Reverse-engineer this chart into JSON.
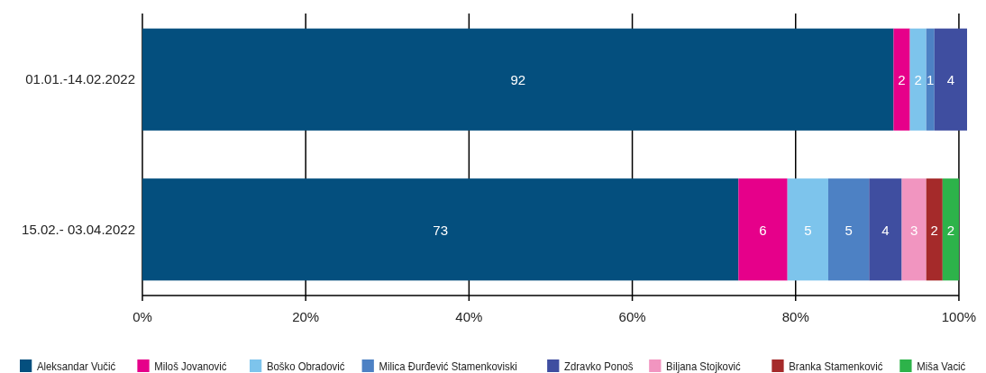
{
  "chart_data": {
    "type": "bar",
    "orientation": "horizontal",
    "stacked": true,
    "categories": [
      "01.01.-14.02.2022",
      "15.02.- 03.04.2022"
    ],
    "series": [
      {
        "name": "Aleksandar Vučić",
        "color": "#044f7e",
        "values": [
          92,
          73
        ]
      },
      {
        "name": "Miloš Jovanović",
        "color": "#e6008a",
        "values": [
          2,
          6
        ]
      },
      {
        "name": "Boško Obradović",
        "color": "#7dc4ec",
        "values": [
          2,
          5
        ]
      },
      {
        "name": "Milica Đurđević Stamenkoviski",
        "color": "#4d81c4",
        "values": [
          1,
          5
        ]
      },
      {
        "name": "Zdravko Ponoš",
        "color": "#3f4ea0",
        "values": [
          4,
          4
        ]
      },
      {
        "name": "Biljana Stojković",
        "color": "#f195c0",
        "values": [
          null,
          3
        ]
      },
      {
        "name": "Branka Stamenković",
        "color": "#a52a2a",
        "values": [
          null,
          2
        ]
      },
      {
        "name": "Miša Vacić",
        "color": "#2db34a",
        "values": [
          null,
          2
        ]
      }
    ],
    "xlim": [
      0,
      101
    ],
    "xticks": [
      {
        "value": 0,
        "label": "0%"
      },
      {
        "value": 20,
        "label": "20%"
      },
      {
        "value": 40,
        "label": "40%"
      },
      {
        "value": 60,
        "label": "60%"
      },
      {
        "value": 80,
        "label": "80%"
      },
      {
        "value": 100,
        "label": "100%"
      }
    ],
    "grid": "x",
    "legend": "bottom",
    "data_labels": true
  }
}
